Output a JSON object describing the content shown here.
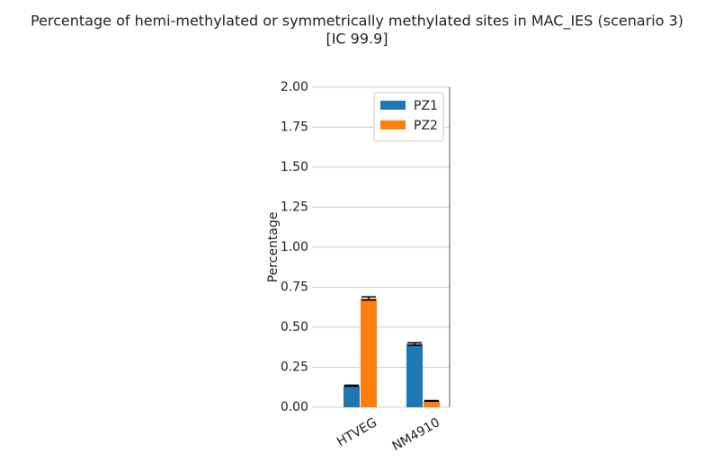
{
  "chart_data": {
    "type": "bar",
    "title": [
      "Percentage of hemi-methylated or symmetrically methylated sites in MAC_IES (scenario 3)",
      "[IC 99.9]"
    ],
    "y_label": "Percentage",
    "categories": [
      "HTVEG",
      "NM4910"
    ],
    "series": [
      {
        "name": "PZ1",
        "color": "#1f77b4",
        "values": [
          0.135,
          0.395
        ],
        "errors": [
          0.003,
          0.008
        ]
      },
      {
        "name": "PZ2",
        "color": "#ff7f0e",
        "values": [
          0.68,
          0.04
        ],
        "errors": [
          0.01,
          0.002
        ]
      }
    ],
    "ylim": [
      0,
      2
    ],
    "yticks": [
      {
        "value": 0,
        "label": "0.00"
      },
      0.25,
      {
        "value": 0.5,
        "label": "0.50"
      },
      0.75,
      {
        "value": 1,
        "label": "1.00"
      },
      1.25,
      {
        "value": 1.5,
        "label": "1.50"
      },
      1.75,
      {
        "value": 2,
        "label": "2.00"
      }
    ],
    "grid": true,
    "legend": "upper right"
  }
}
